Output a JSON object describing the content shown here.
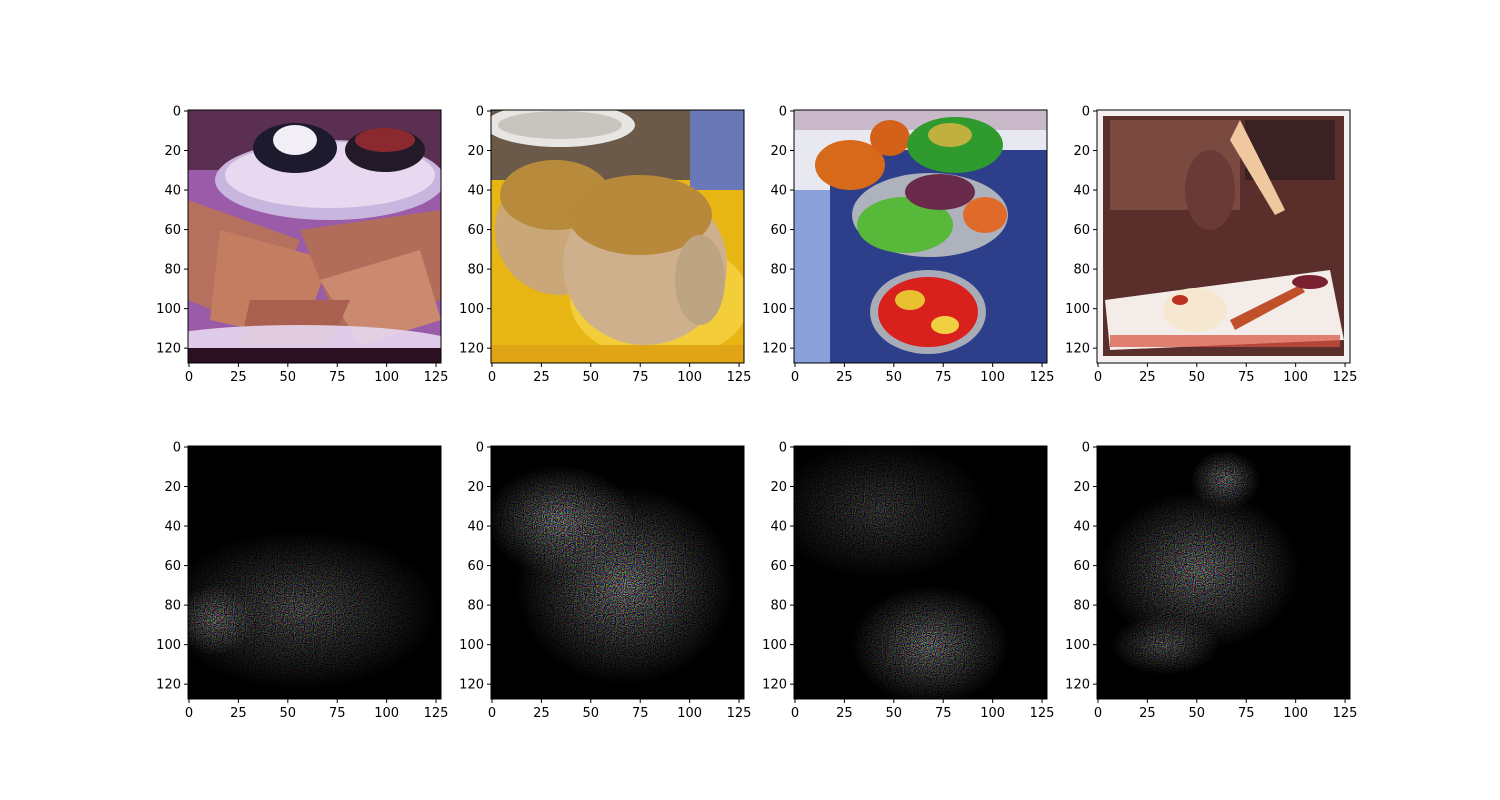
{
  "figure": {
    "grid": {
      "rows": 2,
      "cols": 4
    },
    "axis_range": {
      "x": [
        0,
        127
      ],
      "y": [
        0,
        127
      ],
      "y_inverted": true
    },
    "x_ticks": [
      0,
      25,
      50,
      75,
      100,
      125
    ],
    "y_ticks": [
      0,
      20,
      40,
      60,
      80,
      100,
      120
    ],
    "panels": [
      {
        "row": 0,
        "col": 0,
        "content": "photo",
        "subject": "quesadilla wedges with sour cream and salsa cups on a plate"
      },
      {
        "row": 0,
        "col": 1,
        "content": "photo",
        "subject": "two glazed rolls in yellow sauce"
      },
      {
        "row": 0,
        "col": 2,
        "content": "photo",
        "subject": "salad bowls, tomatoes and vegetables on blue tablecloth"
      },
      {
        "row": 0,
        "col": 3,
        "content": "photo",
        "subject": "panna cotta dessert with red sauce, vintage frame"
      },
      {
        "row": 1,
        "col": 0,
        "content": "saliency-map"
      },
      {
        "row": 1,
        "col": 1,
        "content": "saliency-map"
      },
      {
        "row": 1,
        "col": 2,
        "content": "saliency-map"
      },
      {
        "row": 1,
        "col": 3,
        "content": "saliency-map"
      }
    ]
  },
  "colors": {
    "background": "#ffffff",
    "axis": "#000000",
    "saliency_bg": "#000000"
  }
}
